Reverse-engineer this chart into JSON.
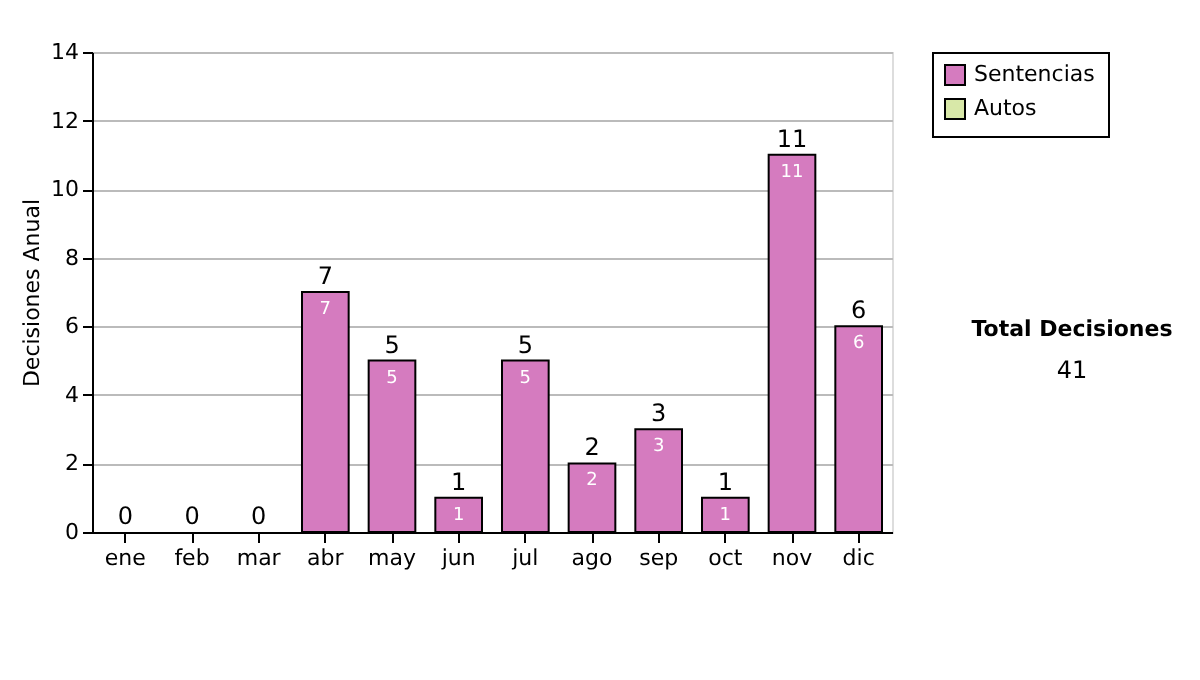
{
  "chart_data": {
    "type": "bar",
    "stacked": true,
    "ylabel": "Decisiones Anual",
    "categories": [
      "ene",
      "feb",
      "mar",
      "abr",
      "may",
      "jun",
      "jul",
      "ago",
      "sep",
      "oct",
      "nov",
      "dic"
    ],
    "series": [
      {
        "name": "Sentencias",
        "color": "#d57bbf",
        "values": [
          0,
          0,
          0,
          7,
          5,
          1,
          5,
          2,
          3,
          1,
          11,
          6
        ],
        "value_labels": [
          null,
          null,
          null,
          "7",
          "5",
          "1",
          "5",
          "2",
          "3",
          "1",
          "11",
          "6"
        ]
      },
      {
        "name": "Autos",
        "color": "#d8e8a8",
        "values": [
          null,
          null,
          null,
          null,
          null,
          null,
          null,
          null,
          null,
          null,
          null,
          null
        ]
      }
    ],
    "totals": [
      "0",
      "0",
      "0",
      "7",
      "5",
      "1",
      "5",
      "2",
      "3",
      "1",
      "11",
      "6"
    ],
    "ylim": [
      0,
      14
    ],
    "yticks": [
      0,
      2,
      4,
      6,
      8,
      10,
      12,
      14
    ],
    "grid": "y",
    "legend": "right",
    "annotations": [
      "Total Decisiones",
      "41"
    ]
  }
}
